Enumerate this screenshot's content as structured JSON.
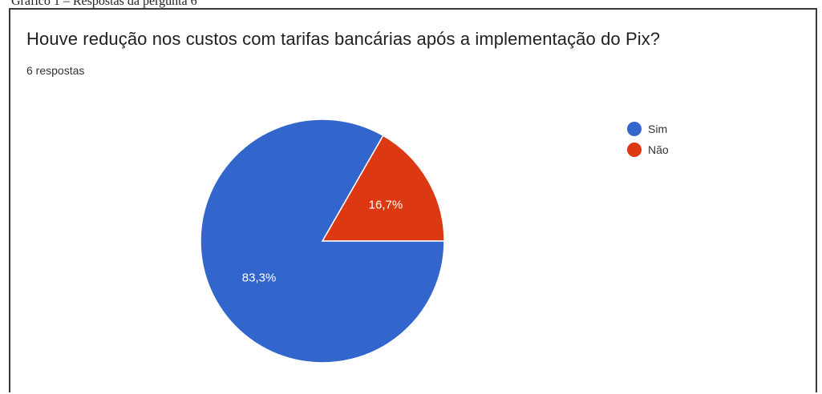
{
  "caption": "Gráfico 1 – Respostas da pergunta 6",
  "header": {
    "title": "Houve redução nos custos com tarifas bancárias após a implementação do Pix?",
    "subtitle": "6 respostas"
  },
  "chart_data": {
    "type": "pie",
    "title": "Houve redução nos custos com tarifas bancárias após a implementação do Pix?",
    "subtitle": "6 respostas",
    "slices": [
      {
        "name": "Não",
        "value": 16.7,
        "label": "16,7%",
        "color": "#dc3912"
      },
      {
        "name": "Sim",
        "value": 83.3,
        "label": "83,3%",
        "color": "#3366cc"
      }
    ],
    "legend": {
      "placement": "right",
      "entries": [
        "Sim",
        "Não"
      ]
    }
  }
}
